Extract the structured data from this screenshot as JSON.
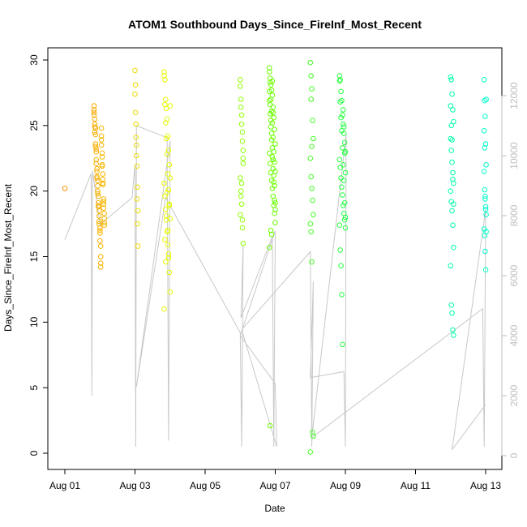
{
  "chart_data": {
    "type": "scatter",
    "title": "ATOM1 Southbound Days_Since_FireInf_Most_Recent",
    "xlabel": "Date",
    "ylabel": "Days_Since_FireInf_Most_Recent",
    "x_ticks": [
      "Aug 01",
      "Aug 03",
      "Aug 05",
      "Aug 07",
      "Aug 09",
      "Aug 11",
      "Aug 13"
    ],
    "y_ticks": [
      0,
      5,
      10,
      15,
      20,
      25,
      30
    ],
    "y2_ticks": [
      0,
      2000,
      4000,
      6000,
      8000,
      10000,
      12000
    ],
    "xlim": [
      "2022-08-01",
      "2022-08-13"
    ],
    "ylim": [
      0,
      30
    ],
    "y2lim": [
      0,
      12000
    ],
    "grid": false,
    "legend": "none",
    "colors": {
      "points_gradient": [
        "#ff8c00",
        "#e6ff00",
        "#66ff00",
        "#00ff66",
        "#00ffcc"
      ],
      "overlay_line": "#c8c8c8",
      "right_axis": "#bdbdbd",
      "axis": "#000000"
    },
    "overlay_series": {
      "name": "",
      "axis": "right",
      "style": "line",
      "points": [
        [
          "2022-08-01 00:00",
          7200
        ],
        [
          "2022-08-01 18:00",
          9400
        ],
        [
          "2022-08-01 18:30",
          2000
        ],
        [
          "2022-08-01 19:00",
          9500
        ],
        [
          "2022-08-02 00:00",
          7700
        ],
        [
          "2022-08-02 22:00",
          8600
        ],
        [
          "2022-08-03 00:00",
          9700
        ],
        [
          "2022-08-03 00:30",
          300
        ],
        [
          "2022-08-03 01:00",
          11000
        ],
        [
          "2022-08-03 22:00",
          10600
        ],
        [
          "2022-08-03 23:00",
          500
        ],
        [
          "2022-08-04 00:00",
          10500
        ],
        [
          "2022-08-03 01:00",
          2300
        ],
        [
          "2022-08-03 21:00",
          8600
        ],
        [
          "2022-08-06 00:00",
          4100
        ],
        [
          "2022-08-06 01:00",
          300
        ],
        [
          "2022-08-06 02:00",
          7000
        ],
        [
          "2022-08-06 00:30",
          4600
        ],
        [
          "2022-08-06 22:00",
          7300
        ],
        [
          "2022-08-06 23:00",
          300
        ],
        [
          "2022-08-07 00:00",
          7500
        ],
        [
          "2022-08-06 00:00",
          4000
        ],
        [
          "2022-08-07 00:00",
          2400
        ],
        [
          "2022-08-07 01:00",
          300
        ],
        [
          "2022-08-06 01:00",
          4200
        ],
        [
          "2022-08-08 00:00",
          6800
        ],
        [
          "2022-08-08 01:00",
          300
        ],
        [
          "2022-08-08 02:00",
          5800
        ],
        [
          "2022-08-08 00:00",
          2600
        ],
        [
          "2022-08-08 23:00",
          2800
        ],
        [
          "2022-08-09 00:00",
          300
        ],
        [
          "2022-08-09 00:30",
          10700
        ],
        [
          "2022-08-08 01:00",
          600
        ],
        [
          "2022-08-12 22:00",
          4900
        ],
        [
          "2022-08-12 23:00",
          300
        ],
        [
          "2022-08-13 00:00",
          8200
        ],
        [
          "2022-08-12 01:00",
          200
        ],
        [
          "2022-08-13 00:00",
          1700
        ]
      ]
    },
    "series": [
      {
        "name": "",
        "axis": "left",
        "x": [
          "2022-08-01 00:00",
          "2022-08-01 20:00",
          "2022-08-01 20:30",
          "2022-08-01 21:00",
          "2022-08-01 21:30",
          "2022-08-01 22:00",
          "2022-08-01 22:30",
          "2022-08-01 23:00",
          "2022-08-01 23:30",
          "2022-08-02 00:00",
          "2022-08-02 00:30",
          "2022-08-02 01:00",
          "2022-08-02 01:30",
          "2022-08-02 02:00",
          "2022-08-02 02:30",
          "2022-08-02 03:00",
          "2022-08-01 20:00",
          "2022-08-01 20:30",
          "2022-08-01 21:00",
          "2022-08-01 21:30",
          "2022-08-01 22:00",
          "2022-08-01 22:30",
          "2022-08-01 23:00",
          "2022-08-01 23:30",
          "2022-08-02 00:00",
          "2022-08-02 00:30",
          "2022-08-02 01:00",
          "2022-08-02 01:30",
          "2022-08-02 02:00",
          "2022-08-02 02:30",
          "2022-08-02 03:00",
          "2022-08-01 20:00",
          "2022-08-01 20:30",
          "2022-08-01 21:00",
          "2022-08-01 21:30",
          "2022-08-01 22:00",
          "2022-08-01 22:30",
          "2022-08-01 23:00",
          "2022-08-01 23:30",
          "2022-08-02 00:00",
          "2022-08-02 00:30",
          "2022-08-02 01:00",
          "2022-08-02 01:30",
          "2022-08-02 02:00",
          "2022-08-02 02:30",
          "2022-08-02 03:00",
          "2022-08-01 20:00",
          "2022-08-01 20:30",
          "2022-08-01 21:00",
          "2022-08-01 21:30",
          "2022-08-01 22:00",
          "2022-08-01 22:30",
          "2022-08-01 23:00",
          "2022-08-01 23:30",
          "2022-08-02 00:00",
          "2022-08-02 00:30",
          "2022-08-02 01:00",
          "2022-08-02 01:30",
          "2022-08-02 02:00",
          "2022-08-02 02:30",
          "2022-08-02 03:00"
        ],
        "y": [
          20.2,
          26.5,
          25.5,
          24.8,
          23.2,
          21.5,
          19.8,
          18.8,
          17.5,
          16.2,
          14.5,
          23.9,
          22.0,
          20.5,
          19.2,
          17.9,
          26.2,
          25.1,
          24.3,
          23.0,
          21.7,
          20.8,
          19.6,
          18.1,
          17.2,
          15.8,
          24.8,
          22.9,
          21.3,
          19.0,
          17.4,
          25.8,
          24.5,
          23.6,
          22.4,
          21.0,
          20.0,
          18.9,
          17.7,
          16.8,
          15.0,
          24.2,
          22.6,
          20.9,
          19.4,
          18.3,
          26.0,
          24.9,
          23.4,
          22.1,
          21.1,
          20.4,
          19.1,
          18.5,
          17.0,
          14.2,
          23.5,
          21.9,
          20.6,
          18.7,
          17.6
        ]
      },
      {
        "name": "",
        "axis": "left",
        "x": [
          "2022-08-03 00:00",
          "2022-08-03 00:20",
          "2022-08-03 00:40",
          "2022-08-03 01:00",
          "2022-08-03 01:20",
          "2022-08-03 01:40",
          "2022-08-03 02:00",
          "2022-08-03 00:00",
          "2022-08-03 00:20",
          "2022-08-03 00:40",
          "2022-08-03 01:00",
          "2022-08-03 01:20",
          "2022-08-03 01:40",
          "2022-08-03 02:00",
          "2022-08-03 20:00",
          "2022-08-03 20:30",
          "2022-08-03 21:00",
          "2022-08-03 21:30",
          "2022-08-03 22:00",
          "2022-08-03 22:30",
          "2022-08-03 23:00",
          "2022-08-03 23:30",
          "2022-08-04 00:00",
          "2022-08-03 20:00",
          "2022-08-03 20:30",
          "2022-08-03 21:00",
          "2022-08-03 21:30",
          "2022-08-03 22:00",
          "2022-08-03 22:30",
          "2022-08-03 23:00",
          "2022-08-03 23:30",
          "2022-08-04 00:00",
          "2022-08-03 20:00",
          "2022-08-03 20:30",
          "2022-08-03 21:00",
          "2022-08-03 21:30",
          "2022-08-03 22:00",
          "2022-08-03 22:30",
          "2022-08-03 23:00",
          "2022-08-03 23:30",
          "2022-08-04 00:00",
          "2022-08-03 20:00",
          "2022-08-03 20:30",
          "2022-08-03 21:00",
          "2022-08-03 21:30",
          "2022-08-03 22:00",
          "2022-08-03 22:30",
          "2022-08-03 23:00",
          "2022-08-03 23:30",
          "2022-08-04 00:00"
        ],
        "y": [
          29.2,
          28.1,
          25.1,
          23.5,
          21.9,
          20.3,
          18.5,
          27.4,
          26.0,
          24.1,
          22.7,
          19.4,
          17.5,
          15.8,
          29.1,
          28.5,
          27.0,
          26.3,
          25.5,
          24.2,
          23.1,
          22.0,
          21.0,
          28.8,
          26.6,
          25.2,
          24.0,
          22.8,
          21.3,
          20.1,
          19.0,
          17.9,
          20.6,
          19.6,
          18.6,
          17.8,
          16.9,
          15.9,
          14.9,
          13.8,
          12.3,
          11.0,
          16.3,
          14.6,
          18.1,
          19.9,
          17.0,
          15.2,
          18.9,
          26.5
        ]
      },
      {
        "name": "",
        "axis": "left",
        "x": [
          "2022-08-06 00:00",
          "2022-08-06 00:30",
          "2022-08-06 01:00",
          "2022-08-06 01:30",
          "2022-08-06 02:00",
          "2022-08-06 00:00",
          "2022-08-06 00:30",
          "2022-08-06 01:00",
          "2022-08-06 01:30",
          "2022-08-06 02:00",
          "2022-08-06 00:00",
          "2022-08-06 00:30",
          "2022-08-06 01:00",
          "2022-08-06 01:30",
          "2022-08-06 02:00",
          "2022-08-06 00:00",
          "2022-08-06 00:30",
          "2022-08-06 01:00",
          "2022-08-06 01:30",
          "2022-08-06 02:00",
          "2022-08-06 20:00",
          "2022-08-06 20:30",
          "2022-08-06 21:00",
          "2022-08-06 21:30",
          "2022-08-06 22:00",
          "2022-08-06 22:30",
          "2022-08-06 23:00",
          "2022-08-06 23:30",
          "2022-08-07 00:00",
          "2022-08-06 20:00",
          "2022-08-06 20:30",
          "2022-08-06 21:00",
          "2022-08-06 21:30",
          "2022-08-06 22:00",
          "2022-08-06 22:30",
          "2022-08-06 23:00",
          "2022-08-06 23:30",
          "2022-08-07 00:00",
          "2022-08-06 20:00",
          "2022-08-06 20:30",
          "2022-08-06 21:00",
          "2022-08-06 21:30",
          "2022-08-06 22:00",
          "2022-08-06 22:30",
          "2022-08-06 23:00",
          "2022-08-06 23:30",
          "2022-08-07 00:00",
          "2022-08-06 20:00",
          "2022-08-06 20:30",
          "2022-08-06 21:00",
          "2022-08-06 21:30",
          "2022-08-06 22:00",
          "2022-08-06 22:30",
          "2022-08-06 23:00",
          "2022-08-06 23:30",
          "2022-08-07 00:00",
          "2022-08-06 20:00",
          "2022-08-06 20:30",
          "2022-08-06 21:00",
          "2022-08-06 21:30",
          "2022-08-06 22:00",
          "2022-08-06 22:30",
          "2022-08-06 23:00",
          "2022-08-06 23:30",
          "2022-08-07 00:00",
          "2022-08-06 20:00",
          "2022-08-06 20:30",
          "2022-08-06 21:00",
          "2022-08-06 21:30",
          "2022-08-06 22:00",
          "2022-08-06 22:30"
        ],
        "y": [
          28.5,
          27.0,
          25.8,
          24.5,
          23.1,
          28.0,
          26.4,
          25.1,
          23.8,
          22.5,
          21.0,
          20.0,
          19.0,
          17.8,
          16.0,
          18.2,
          19.6,
          20.6,
          17.2,
          22.1,
          29.4,
          28.6,
          28.1,
          27.7,
          27.3,
          26.4,
          25.6,
          24.7,
          23.6,
          29.1,
          28.3,
          27.0,
          26.1,
          25.2,
          24.1,
          23.0,
          22.2,
          21.5,
          22.9,
          22.1,
          21.4,
          20.8,
          20.2,
          19.6,
          18.9,
          18.3,
          17.6,
          26.9,
          25.9,
          24.9,
          23.9,
          22.6,
          21.7,
          20.7,
          19.3,
          18.6,
          27.6,
          26.6,
          25.4,
          24.4,
          23.3,
          22.4,
          21.2,
          20.4,
          19.1,
          15.7,
          2.1,
          17.0,
          16.7,
          28.4,
          26.0
        ]
      },
      {
        "name": "",
        "axis": "left",
        "x": [
          "2022-08-08 00:00",
          "2022-08-08 00:30",
          "2022-08-08 01:00",
          "2022-08-08 01:30",
          "2022-08-08 02:00",
          "2022-08-08 00:00",
          "2022-08-08 00:30",
          "2022-08-08 01:00",
          "2022-08-08 01:30",
          "2022-08-08 02:00",
          "2022-08-08 00:00",
          "2022-08-08 00:30",
          "2022-08-08 01:00",
          "2022-08-08 01:30",
          "2022-08-08 02:00",
          "2022-08-08 00:00",
          "2022-08-08 00:30",
          "2022-08-08 01:00",
          "2022-08-08 20:00",
          "2022-08-08 20:30",
          "2022-08-08 21:00",
          "2022-08-08 21:30",
          "2022-08-08 22:00",
          "2022-08-08 22:30",
          "2022-08-08 23:00",
          "2022-08-08 23:30",
          "2022-08-09 00:00",
          "2022-08-08 20:00",
          "2022-08-08 20:30",
          "2022-08-08 21:00",
          "2022-08-08 21:30",
          "2022-08-08 22:00",
          "2022-08-08 22:30",
          "2022-08-08 23:00",
          "2022-08-08 23:30",
          "2022-08-09 00:00",
          "2022-08-08 20:00",
          "2022-08-08 20:30",
          "2022-08-08 21:00",
          "2022-08-08 21:30",
          "2022-08-08 22:00",
          "2022-08-08 22:30",
          "2022-08-08 23:00",
          "2022-08-08 23:30",
          "2022-08-09 00:00",
          "2022-08-08 20:00",
          "2022-08-08 20:30",
          "2022-08-08 21:00",
          "2022-08-08 21:30",
          "2022-08-08 22:00",
          "2022-08-08 22:30",
          "2022-08-08 23:00",
          "2022-08-08 23:30",
          "2022-08-09 00:00"
        ],
        "y": [
          29.8,
          28.8,
          27.8,
          25.4,
          24.0,
          22.5,
          21.1,
          20.2,
          19.3,
          18.2,
          17.5,
          16.9,
          14.6,
          1.6,
          1.3,
          0.1,
          27.0,
          23.4,
          28.8,
          28.5,
          27.6,
          26.9,
          25.8,
          25.1,
          24.4,
          23.7,
          23.0,
          22.4,
          21.8,
          21.0,
          20.3,
          19.7,
          18.9,
          18.3,
          17.8,
          17.2,
          28.4,
          26.8,
          25.6,
          24.6,
          23.3,
          22.0,
          20.8,
          19.1,
          18.0,
          17.4,
          15.5,
          14.3,
          12.1,
          8.3,
          26.2,
          24.9,
          22.9,
          21.4
        ]
      },
      {
        "name": "",
        "axis": "left",
        "x": [
          "2022-08-12 00:00",
          "2022-08-12 00:30",
          "2022-08-12 01:00",
          "2022-08-12 01:30",
          "2022-08-12 02:00",
          "2022-08-12 00:00",
          "2022-08-12 00:30",
          "2022-08-12 01:00",
          "2022-08-12 01:30",
          "2022-08-12 02:00",
          "2022-08-12 00:00",
          "2022-08-12 00:30",
          "2022-08-12 01:00",
          "2022-08-12 01:30",
          "2022-08-12 02:00",
          "2022-08-12 00:00",
          "2022-08-12 00:30",
          "2022-08-12 01:00",
          "2022-08-12 01:30",
          "2022-08-12 02:00",
          "2022-08-12 00:00",
          "2022-08-12 00:30",
          "2022-08-12 01:00",
          "2022-08-12 01:30",
          "2022-08-12 02:00",
          "2022-08-12 23:00",
          "2022-08-12 23:20",
          "2022-08-12 23:40",
          "2022-08-13 00:00",
          "2022-08-13 00:20",
          "2022-08-12 23:00",
          "2022-08-12 23:20",
          "2022-08-12 23:40",
          "2022-08-13 00:00",
          "2022-08-13 00:20",
          "2022-08-12 23:00",
          "2022-08-12 23:20",
          "2022-08-12 23:40",
          "2022-08-13 00:00",
          "2022-08-13 00:20",
          "2022-08-12 23:00",
          "2022-08-12 23:20",
          "2022-08-12 23:40",
          "2022-08-13 00:00",
          "2022-08-13 00:20"
        ],
        "y": [
          28.7,
          28.5,
          27.4,
          26.2,
          25.3,
          24.0,
          23.1,
          22.2,
          21.4,
          20.6,
          20.0,
          19.2,
          18.5,
          17.4,
          15.7,
          14.3,
          11.3,
          10.7,
          9.4,
          9.0,
          26.5,
          25.0,
          23.9,
          20.9,
          19.0,
          28.5,
          26.9,
          25.7,
          23.6,
          22.0,
          21.5,
          20.1,
          19.4,
          18.8,
          18.2,
          17.1,
          16.6,
          15.4,
          14.0,
          27.0,
          24.6,
          23.3,
          19.6,
          18.6,
          16.9
        ]
      }
    ]
  }
}
